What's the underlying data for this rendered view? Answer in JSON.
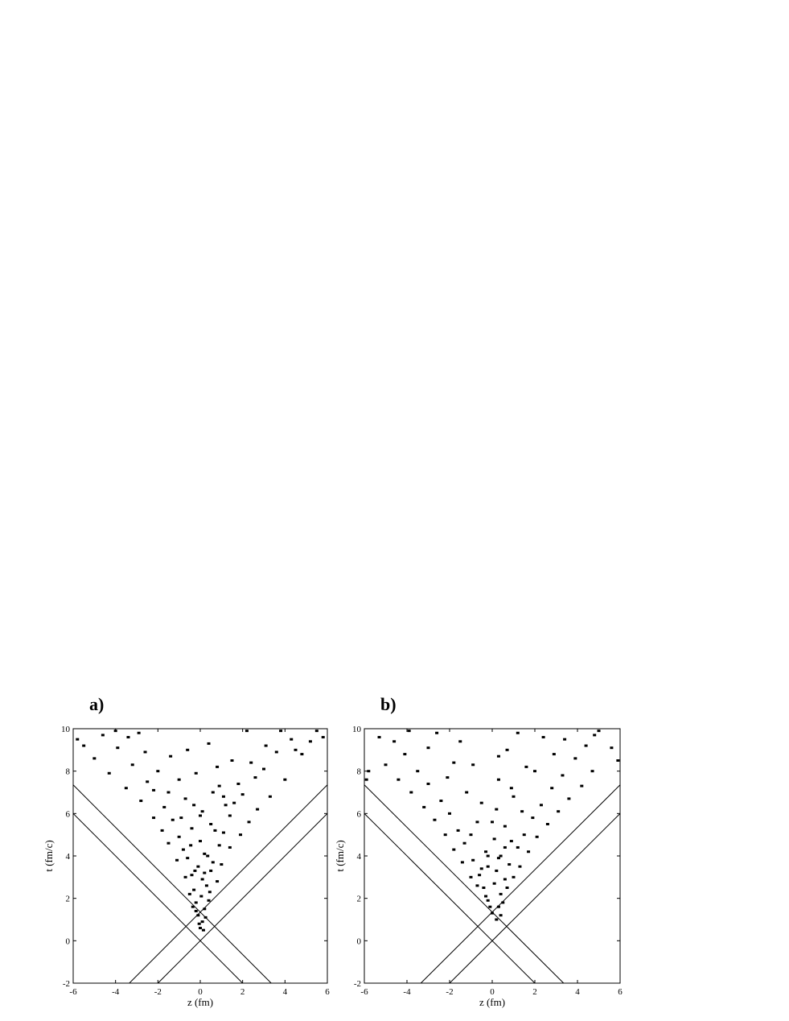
{
  "chart_data": [
    {
      "type": "scatter",
      "title": "a)",
      "xlabel": "z (fm)",
      "ylabel": "t (fm/c)",
      "color": "#000000",
      "xlim": [
        -6,
        6
      ],
      "ylim": [
        -2,
        10
      ],
      "xticks": [
        -6,
        -4,
        -2,
        0,
        2,
        4,
        6
      ],
      "yticks": [
        -2,
        0,
        2,
        4,
        6,
        8,
        10
      ],
      "lines": [
        {
          "x": [
            -6,
            2
          ],
          "y": [
            6,
            -2
          ]
        },
        {
          "x": [
            -2,
            6
          ],
          "y": [
            -2,
            6
          ]
        },
        {
          "x": [
            -6,
            3.35
          ],
          "y": [
            7.35,
            -2
          ]
        },
        {
          "x": [
            -3.35,
            6
          ],
          "y": [
            -2,
            7.35
          ]
        }
      ],
      "x": [
        0,
        0.1,
        -0.1,
        0.2,
        -0.2,
        0.05,
        -0.3,
        0.3,
        0.1,
        -0.4,
        0.5,
        -0.1,
        0.6,
        -0.6,
        0.2,
        -0.8,
        0.9,
        0,
        -1.0,
        1.1,
        -0.4,
        0.5,
        -1.3,
        1.4,
        0.1,
        -1.7,
        1.6,
        -0.7,
        2.0,
        -2.2,
        0.9,
        -2.5,
        2.6,
        -0.2,
        3.0,
        -3.2,
        1.5,
        -1.4,
        3.6,
        -3.9,
        0.4,
        4.3,
        -4.6,
        2.2,
        -5.5,
        5.2,
        -2.9,
        5.8,
        -5.0,
        4.8,
        -4.3,
        4.0,
        -3.5,
        3.3,
        -2.8,
        2.7,
        -2.2,
        2.3,
        -1.8,
        1.9,
        -1.5,
        1.4,
        -1.1,
        1.0,
        -0.7,
        0.8,
        -0.5,
        0.4,
        -0.2,
        0.25,
        -0.05,
        0.15,
        -0.35,
        0.45,
        -0.25,
        0.35,
        -0.45,
        0.7,
        -0.9,
        1.2,
        -1.5,
        1.8,
        -2.0,
        2.4,
        -2.6,
        3.1,
        -3.4,
        3.8,
        -0.6,
        0.8,
        -1.0,
        1.1,
        0.0,
        -0.3,
        0.6,
        4.5,
        -4.0,
        5.5,
        -5.8,
        0.2
      ],
      "values": [
        0.6,
        0.9,
        1.2,
        1.5,
        1.8,
        2.1,
        2.4,
        2.6,
        2.9,
        3.1,
        3.3,
        3.5,
        3.7,
        3.9,
        4.1,
        4.3,
        4.5,
        4.7,
        4.9,
        5.1,
        5.3,
        5.5,
        5.7,
        5.9,
        6.1,
        6.3,
        6.5,
        6.7,
        6.9,
        7.1,
        7.3,
        7.5,
        7.7,
        7.9,
        8.1,
        8.3,
        8.5,
        8.7,
        8.9,
        9.1,
        9.3,
        9.5,
        9.7,
        9.9,
        9.2,
        9.4,
        9.8,
        9.6,
        8.6,
        8.8,
        7.9,
        7.6,
        7.2,
        6.8,
        6.6,
        6.2,
        5.8,
        5.6,
        5.2,
        5.0,
        4.6,
        4.4,
        3.8,
        3.6,
        3.0,
        2.8,
        2.2,
        1.9,
        1.4,
        1.1,
        0.8,
        0.5,
        1.6,
        2.3,
        3.3,
        4.0,
        4.5,
        5.2,
        5.8,
        6.4,
        7.0,
        7.4,
        8.0,
        8.4,
        8.9,
        9.2,
        9.6,
        9.9,
        9.0,
        8.2,
        7.6,
        6.8,
        5.9,
        6.4,
        7.0,
        9.0,
        9.9,
        9.9,
        9.5,
        3.2
      ]
    },
    {
      "type": "scatter",
      "title": "b)",
      "xlabel": "z (fm)",
      "ylabel": "t (fm/c)",
      "color": "#000000",
      "xlim": [
        -6,
        6
      ],
      "ylim": [
        -2,
        10
      ],
      "xticks": [
        -6,
        -4,
        -2,
        0,
        2,
        4,
        6
      ],
      "yticks": [
        -2,
        0,
        2,
        4,
        6,
        8,
        10
      ],
      "lines": [
        {
          "x": [
            -6,
            2
          ],
          "y": [
            6,
            -2
          ]
        },
        {
          "x": [
            -2,
            6
          ],
          "y": [
            -2,
            6
          ]
        },
        {
          "x": [
            -6,
            3.35
          ],
          "y": [
            7.35,
            -2
          ]
        },
        {
          "x": [
            -3.35,
            6
          ],
          "y": [
            -2,
            7.35
          ]
        }
      ],
      "x": [
        0.2,
        0,
        0.3,
        -0.2,
        0.4,
        -0.4,
        0.1,
        0.6,
        -0.6,
        0.2,
        -0.2,
        0.8,
        -0.9,
        0.4,
        -0.3,
        1.2,
        -1.3,
        0.1,
        1.5,
        -1.6,
        0.6,
        -0.7,
        1.9,
        -2.0,
        0.2,
        2.3,
        -2.4,
        1.0,
        -1.2,
        2.8,
        -3.0,
        0.3,
        3.3,
        -3.5,
        1.6,
        -1.8,
        3.9,
        -4.1,
        0.7,
        4.4,
        -4.6,
        2.4,
        -2.6,
        5.0,
        -5.3,
        5.6,
        -5.8,
        5.9,
        -5.0,
        4.7,
        -4.4,
        4.2,
        -3.8,
        3.6,
        -3.2,
        3.1,
        -2.7,
        2.6,
        -2.2,
        2.1,
        -1.8,
        1.7,
        -1.4,
        1.3,
        -1.0,
        1.0,
        -0.7,
        0.7,
        -0.3,
        0.5,
        -0.1,
        0.4,
        0.9,
        -1.0,
        0.0,
        1.4,
        -0.5,
        0.9,
        -2.1,
        2.0,
        -0.9,
        2.9,
        -3.0,
        3.4,
        -1.5,
        1.2,
        -3.9,
        0.3,
        -0.2,
        0.3,
        0.6,
        -0.5,
        -5.9,
        4.8
      ],
      "values": [
        1.0,
        1.3,
        1.6,
        1.9,
        2.2,
        2.5,
        2.7,
        2.9,
        3.1,
        3.3,
        3.5,
        3.6,
        3.8,
        4.0,
        4.2,
        4.4,
        4.6,
        4.8,
        5.0,
        5.2,
        5.4,
        5.6,
        5.8,
        6.0,
        6.2,
        6.4,
        6.6,
        6.8,
        7.0,
        7.2,
        7.4,
        7.6,
        7.8,
        8.0,
        8.2,
        8.4,
        8.6,
        8.8,
        9.0,
        9.2,
        9.4,
        9.6,
        9.8,
        9.9,
        9.6,
        9.1,
        8.0,
        8.5,
        8.3,
        8.0,
        7.6,
        7.3,
        7.0,
        6.7,
        6.3,
        6.1,
        5.7,
        5.5,
        5.0,
        4.9,
        4.3,
        4.2,
        3.7,
        3.5,
        3.0,
        3.0,
        2.6,
        2.5,
        2.1,
        1.8,
        1.6,
        1.2,
        4.7,
        5.0,
        5.6,
        6.1,
        6.5,
        7.2,
        7.7,
        8.0,
        8.3,
        8.8,
        9.1,
        9.5,
        9.4,
        9.8,
        9.9,
        8.7,
        4.0,
        3.9,
        4.4,
        3.4,
        7.6,
        9.7
      ]
    }
  ]
}
